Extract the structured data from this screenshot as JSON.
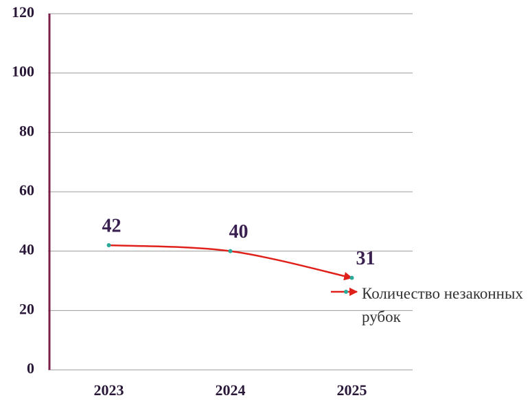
{
  "chart_data": {
    "type": "line",
    "categories": [
      "2023",
      "2024",
      "2025"
    ],
    "series": [
      {
        "name": "Количество незаконных рубок",
        "color": "#e0201a",
        "marker_color": "#2aa898",
        "values": [
          42,
          40,
          31
        ]
      }
    ],
    "ylim": [
      0,
      120
    ],
    "yticks": [
      0,
      20,
      40,
      60,
      80,
      100,
      120
    ],
    "grid": true,
    "legend": "right"
  }
}
